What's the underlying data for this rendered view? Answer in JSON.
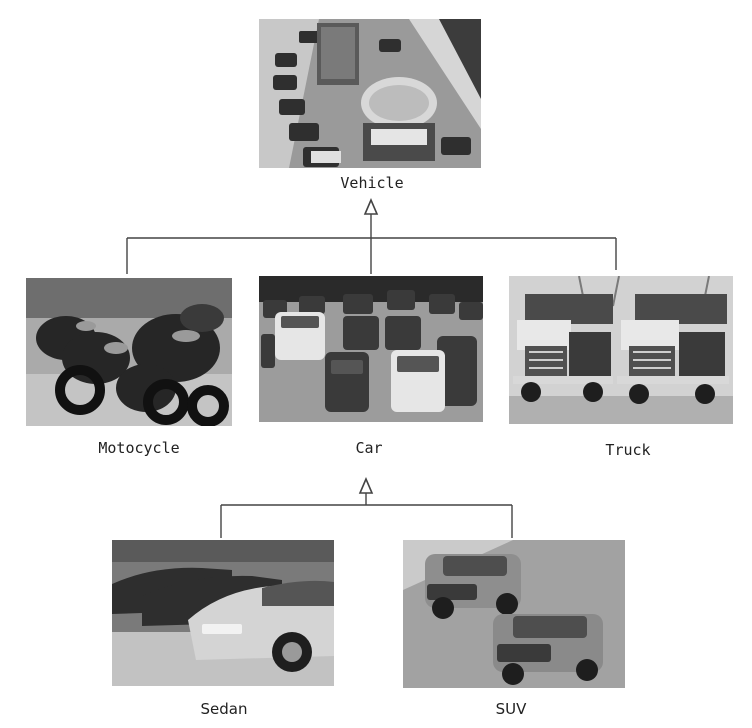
{
  "diagram": {
    "nodes": {
      "vehicle": {
        "label": "Vehicle",
        "photo": "traffic-photo"
      },
      "motorcycle": {
        "label": "Motocycle",
        "photo": "motorcycles-photo"
      },
      "car": {
        "label": "Car",
        "photo": "parking-lot-photo"
      },
      "truck": {
        "label": "Truck",
        "photo": "dump-trucks-photo"
      },
      "sedan": {
        "label": "Sedan",
        "photo": "sedans-photo"
      },
      "suv": {
        "label": "SUV",
        "photo": "suvs-photo"
      }
    },
    "relations": [
      {
        "type": "generalization",
        "parent": "vehicle",
        "children": [
          "motorcycle",
          "car",
          "truck"
        ]
      },
      {
        "type": "generalization",
        "parent": "car",
        "children": [
          "sedan",
          "suv"
        ]
      }
    ],
    "colors": {
      "line": "#444444",
      "text": "#222222"
    }
  }
}
